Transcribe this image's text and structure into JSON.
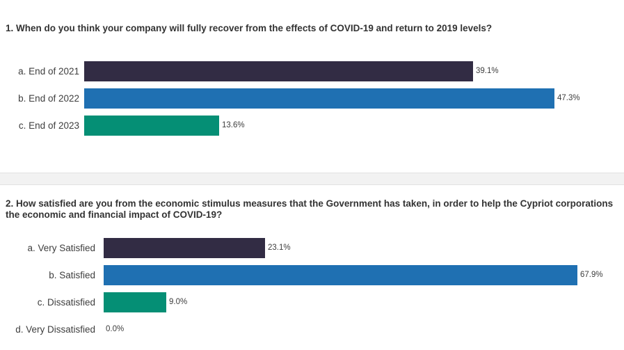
{
  "page": {
    "background": "#ffffff"
  },
  "colors": {
    "title_text": "#333333",
    "label_text": "#3d3d3d",
    "divider_fill": "#f2f2f2",
    "divider_edge": "#e2e2e2"
  },
  "divider": {
    "fill": "#f2f2f2",
    "edge": "#e2e2e2"
  },
  "chart_data": [
    {
      "type": "bar",
      "orientation": "horizontal",
      "title": "1. When do you think your company will fully recover from the effects of COVID-19 and return to 2019 levels?",
      "title_lines": [
        "1. When do you think your company will fully recover from the effects of COVID-19 and return to 2019 levels?"
      ],
      "categories": [
        "a. End of 2021",
        "b. End of 2022",
        "c. End of 2023"
      ],
      "values": [
        39.1,
        47.3,
        13.6
      ],
      "value_labels": [
        "39.1%",
        "47.3%",
        "13.6%"
      ],
      "bar_colors": [
        "#322c44",
        "#1f70b2",
        "#058f75"
      ],
      "xlabel": "",
      "ylabel": "",
      "xlim": [
        0,
        54
      ],
      "grid": false,
      "legend": false
    },
    {
      "type": "bar",
      "orientation": "horizontal",
      "title": "2. How satisfied are you from the economic stimulus measures that the Government has taken, in order to help the Cypriot corporations the economic and financial impact of COVID-19?",
      "title_lines": [
        "2. How satisfied are you from the economic stimulus measures that the Government has taken, in order to help the Cypriot corporations",
        "the economic and financial impact of COVID-19?"
      ],
      "categories": [
        "a. Very Satisfied",
        "b. Satisfied",
        "c. Dissatisfied",
        "d. Very Dissatisfied"
      ],
      "values": [
        23.1,
        67.9,
        9.0,
        0.0
      ],
      "value_labels": [
        "23.1%",
        "67.9%",
        "9.0%",
        "0.0%"
      ],
      "bar_colors": [
        "#322c44",
        "#1f70b2",
        "#058f75",
        "#058f75"
      ],
      "xlabel": "",
      "ylabel": "",
      "xlim": [
        0,
        75
      ],
      "grid": false,
      "legend": false
    }
  ]
}
